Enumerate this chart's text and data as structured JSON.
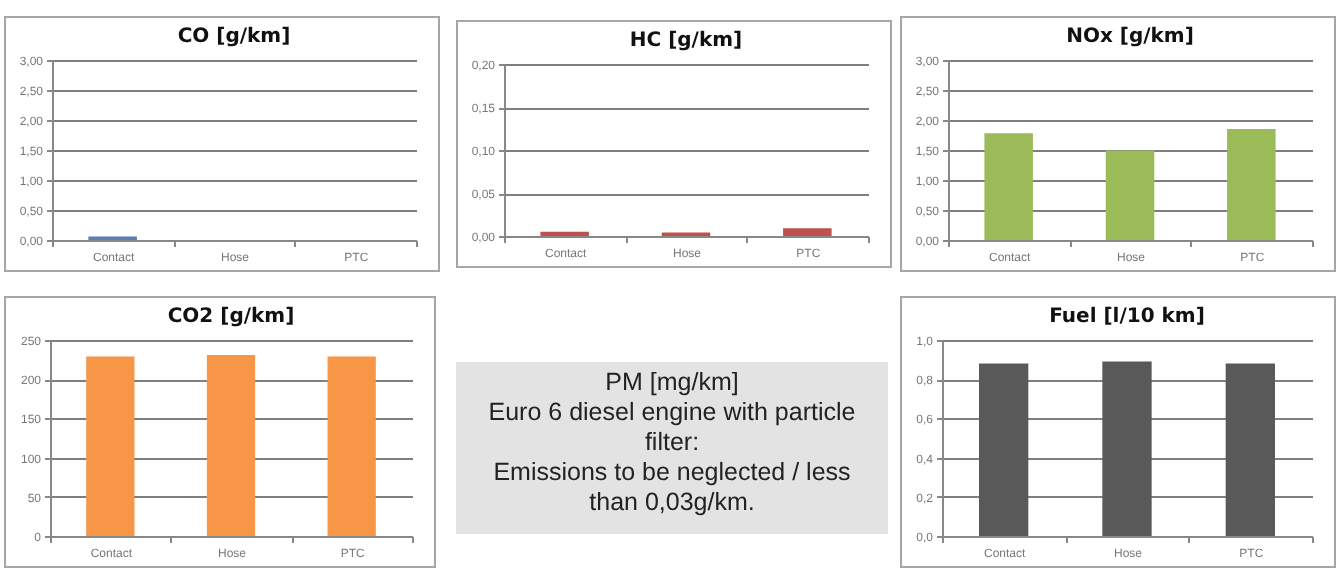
{
  "chart_data": [
    {
      "type": "bar",
      "title": "CO [g/km]",
      "categories": [
        "Contact",
        "Hose",
        "PTC"
      ],
      "values": [
        0.06,
        null,
        null
      ],
      "color": "#5b7fae",
      "ylim": [
        0,
        3
      ],
      "yticks": [
        {
          "value": 0,
          "label": "0,00"
        },
        {
          "value": 0.5,
          "label": "0,50"
        },
        {
          "value": 1,
          "label": "1,00"
        },
        {
          "value": 1.5,
          "label": "1,50"
        },
        {
          "value": 2,
          "label": "2,00"
        },
        {
          "value": 2.5,
          "label": "2,50"
        },
        {
          "value": 3,
          "label": "3,00"
        }
      ],
      "grid": "y"
    },
    {
      "type": "bar",
      "title": "HC [g/km]",
      "categories": [
        "Contact",
        "Hose",
        "PTC"
      ],
      "values": [
        0.005,
        0.004,
        0.009
      ],
      "color": "#c0504d",
      "ylim": [
        0,
        0.2
      ],
      "yticks": [
        {
          "value": 0,
          "label": "0,00"
        },
        {
          "value": 0.05,
          "label": "0,05"
        },
        {
          "value": 0.1,
          "label": "0,10"
        },
        {
          "value": 0.15,
          "label": "0,15"
        },
        {
          "value": 0.2,
          "label": "0,20"
        }
      ],
      "grid": "y"
    },
    {
      "type": "bar",
      "title": "NOx [g/km]",
      "categories": [
        "Contact",
        "Hose",
        "PTC"
      ],
      "values": [
        1.78,
        1.49,
        1.85
      ],
      "color": "#9bbb59",
      "ylim": [
        0,
        3
      ],
      "yticks": [
        {
          "value": 0,
          "label": "0,00"
        },
        {
          "value": 0.5,
          "label": "0,50"
        },
        {
          "value": 1,
          "label": "1,00"
        },
        {
          "value": 1.5,
          "label": "1,50"
        },
        {
          "value": 2,
          "label": "2,00"
        },
        {
          "value": 2.5,
          "label": "2,50"
        },
        {
          "value": 3,
          "label": "3,00"
        }
      ],
      "grid": "y"
    },
    {
      "type": "bar",
      "title": "CO2 [g/km]",
      "categories": [
        "Contact",
        "Hose",
        "PTC"
      ],
      "values": [
        229,
        231,
        229
      ],
      "color": "#f79646",
      "ylim": [
        0,
        250
      ],
      "yticks": [
        0,
        50,
        100,
        150,
        200,
        250
      ],
      "grid": "y"
    },
    {
      "type": "other",
      "title": "PM [mg/km]",
      "annotations": [
        "Euro 6 diesel engine with particle filter:",
        "Emissions to be neglected / less than 0,03g/km."
      ]
    },
    {
      "type": "bar",
      "title": "Fuel [l/10 km]",
      "categories": [
        "Contact",
        "Hose",
        "PTC"
      ],
      "values": [
        0.88,
        0.89,
        0.88
      ],
      "color": "#595959",
      "ylim": [
        0,
        1
      ],
      "yticks": [
        {
          "value": 0,
          "label": "0,0"
        },
        {
          "value": 0.2,
          "label": "0,2"
        },
        {
          "value": 0.4,
          "label": "0,4"
        },
        {
          "value": 0.6,
          "label": "0,6"
        },
        {
          "value": 0.8,
          "label": "0,8"
        },
        {
          "value": 1,
          "label": "1,0"
        }
      ],
      "grid": "y"
    }
  ]
}
